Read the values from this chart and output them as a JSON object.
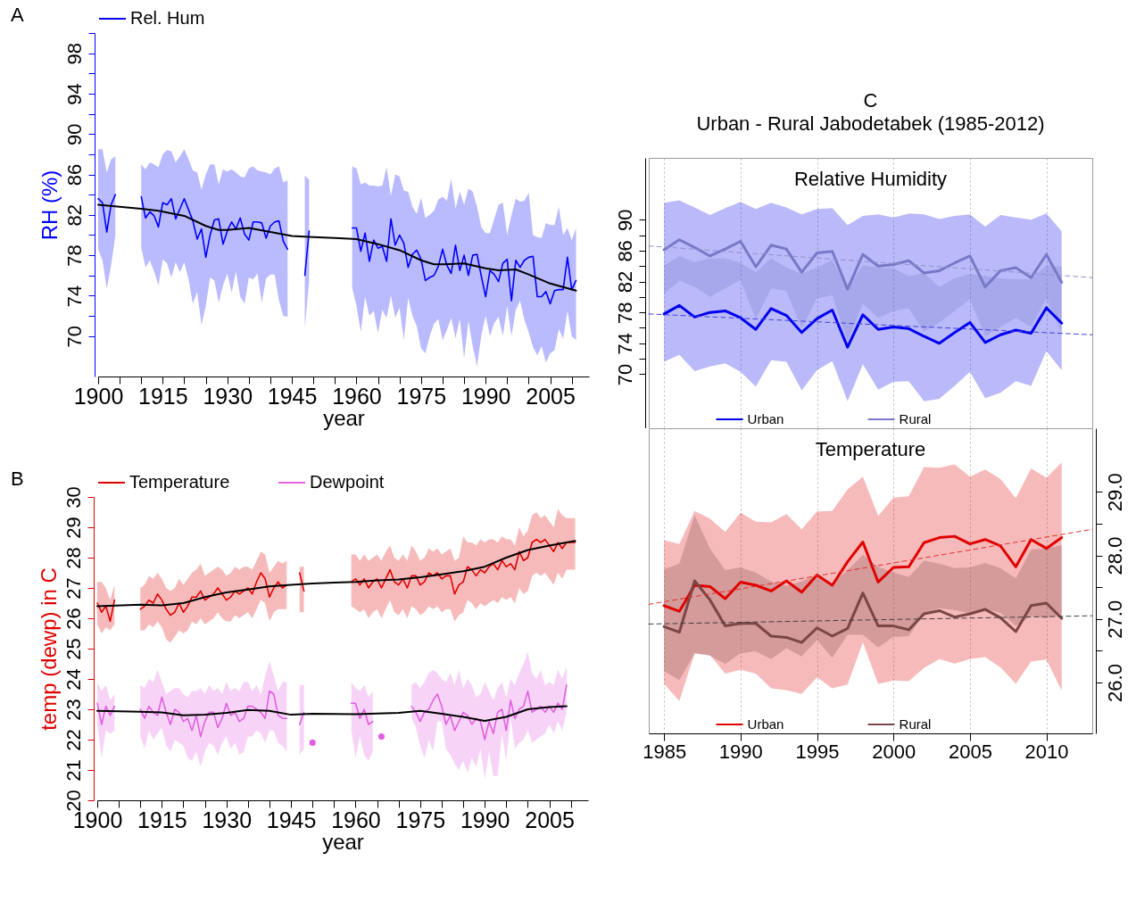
{
  "chart_data": [
    {
      "type": "line",
      "xlabel": "year",
      "ylabel": "RH (%)",
      "annotations": [
        "A"
      ],
      "legend": "top",
      "xlim": [
        1900,
        2014
      ],
      "xticks": [
        1900,
        {
          "value": 1905,
          "label": null
        },
        {
          "value": 1910,
          "label": null
        },
        1915,
        {
          "value": 1920,
          "label": null
        },
        {
          "value": 1925,
          "label": null
        },
        1930,
        {
          "value": 1935,
          "label": null
        },
        {
          "value": 1940,
          "label": null
        },
        1945,
        {
          "value": 1950,
          "label": null
        },
        {
          "value": 1955,
          "label": null
        },
        1960,
        {
          "value": 1965,
          "label": null
        },
        {
          "value": 1970,
          "label": null
        },
        1975,
        {
          "value": 1980,
          "label": null
        },
        {
          "value": 1985,
          "label": null
        },
        1990,
        {
          "value": 1995,
          "label": null
        },
        {
          "value": 2000,
          "label": null
        },
        2005,
        {
          "value": 2010,
          "label": null
        }
      ],
      "ylim": [
        66,
        100
      ],
      "yticks": [
        70,
        {
          "value": 72,
          "label": null
        },
        74,
        {
          "value": 76,
          "label": null
        },
        78,
        {
          "value": 80,
          "label": null
        },
        82,
        {
          "value": 84,
          "label": null
        },
        86,
        {
          "value": 88,
          "label": null
        },
        90,
        {
          "value": 92,
          "label": null
        },
        94,
        {
          "value": 96,
          "label": null
        },
        98,
        {
          "value": 100,
          "label": null
        }
      ],
      "series": [
        {
          "name": "Rel. Hum",
          "color": "#0000ff",
          "x": [
            1900,
            1901,
            1902,
            1903,
            1904,
            1905,
            1910,
            1911,
            1912,
            1913,
            1914,
            1915,
            1916,
            1917,
            1918,
            1919,
            1920,
            1921,
            1922,
            1923,
            1924,
            1925,
            1926,
            1927,
            1928,
            1929,
            1930,
            1931,
            1932,
            1933,
            1934,
            1935,
            1936,
            1937,
            1938,
            1939,
            1940,
            1941,
            1942,
            1943,
            1944,
            1945,
            1948,
            1949,
            1950,
            1959,
            1960,
            1961,
            1962,
            1963,
            1964,
            1965,
            1966,
            1967,
            1968,
            1969,
            1970,
            1971,
            1972,
            1973,
            1974,
            1975,
            1976,
            1977,
            1978,
            1979,
            1980,
            1981,
            1982,
            1983,
            1984,
            1985,
            1986,
            1987,
            1988,
            1989,
            1990,
            1991,
            1992,
            1993,
            1994,
            1995,
            1996,
            1997,
            1998,
            1999,
            2000,
            2001,
            2002,
            2003,
            2004,
            2005,
            2006,
            2007,
            2008,
            2009,
            2010,
            2011
          ],
          "values": [
            83.6,
            83.2,
            80.3,
            83,
            84,
            null,
            83.8,
            81.7,
            82.3,
            81.9,
            80.8,
            83.2,
            83,
            83.6,
            81.6,
            82.6,
            83.6,
            82.5,
            81.4,
            79.6,
            80.6,
            77.8,
            80,
            81.5,
            81.6,
            79.1,
            80.4,
            81.3,
            80.6,
            81.7,
            80.1,
            79.5,
            81.3,
            81.3,
            81.2,
            79.7,
            80.9,
            81.3,
            81.4,
            79.4,
            78.6,
            null,
            76.0,
            80.4,
            null,
            80.7,
            80.7,
            78.4,
            80.2,
            77.4,
            79.5,
            78.7,
            78.9,
            77.4,
            81.6,
            79,
            80,
            79.2,
            76.8,
            78.1,
            78.5,
            77.6,
            75.5,
            75.8,
            76,
            76.9,
            78.6,
            77,
            76.2,
            79,
            76.5,
            78,
            76,
            78,
            78.1,
            75.9,
            73.9,
            76.5,
            76.1,
            75.4,
            77.2,
            77.6,
            73.5,
            77.5,
            76.8,
            77.5,
            77.8,
            77.9,
            73.9,
            73.9,
            74.4,
            73.2,
            74.5,
            74.6,
            74.6,
            77.8,
            74.6,
            75.5
          ],
          "upper": [
            88.5,
            88.5,
            86.2,
            87.5,
            87.8,
            null,
            87,
            86.5,
            87.2,
            87,
            86.7,
            88,
            88.4,
            88.3,
            87.2,
            87.8,
            88.5,
            87.5,
            86.4,
            86.2,
            84.5,
            86,
            87,
            87,
            85,
            86.5,
            86.3,
            86.5,
            86.2,
            85.8,
            85.7,
            86.6,
            86.8,
            86.4,
            86.3,
            86.2,
            86,
            86.6,
            86.8,
            85.2,
            85.4,
            null,
            85.9,
            85.5,
            null,
            86.8,
            86.6,
            85,
            85.2,
            84.9,
            84.9,
            84.8,
            84.9,
            86.7,
            83.9,
            86,
            85.8,
            84.4,
            84.3,
            82.8,
            82.1,
            83.7,
            81.7,
            82,
            82.4,
            83.5,
            83.8,
            83.4,
            85.6,
            82.6,
            84.3,
            83,
            84.6,
            84.3,
            82.8,
            80.8,
            80.2,
            80.2,
            81.6,
            83,
            83.2,
            80,
            82,
            83.6,
            83.3,
            83.4,
            84.2,
            80,
            79.8,
            79.7,
            81.2,
            81,
            81,
            82.8,
            80,
            80.7,
            79.5,
            80.7
          ],
          "lower": [
            78.6,
            77.5,
            74.7,
            77,
            80,
            null,
            78.8,
            76.8,
            77.5,
            76.4,
            75,
            77.6,
            77.2,
            75.8,
            77.3,
            76.3,
            77.3,
            75.6,
            73.2,
            74.4,
            71.1,
            73,
            75.8,
            75.5,
            73.3,
            75,
            76.2,
            74.3,
            76.4,
            73.9,
            73.2,
            75.8,
            75.6,
            76.2,
            73.3,
            75.7,
            76.1,
            76.1,
            73.5,
            72,
            71.9,
            null,
            70.8,
            75.5,
            null,
            74.8,
            73,
            70.4,
            73.9,
            72,
            72.5,
            70.3,
            72.6,
            71.8,
            74,
            71.8,
            72.8,
            69.6,
            73.8,
            72,
            71,
            68.8,
            68.3,
            70,
            71.2,
            71.7,
            69.6,
            70.6,
            71.8,
            69.8,
            71.7,
            67.8,
            71.5,
            69,
            67,
            70.1,
            72,
            70,
            71.3,
            71.9,
            70,
            73,
            70,
            72.6,
            73.5,
            71.6,
            70.4,
            68.9,
            68.1,
            69,
            67.4,
            68.3,
            68.6,
            70.7,
            69.7,
            72.5,
            70,
            69.6
          ]
        },
        {
          "color": "#000000",
          "x": [
            1900,
            1910,
            1914,
            1920,
            1925,
            1928,
            1930,
            1935,
            1940,
            1945,
            1950,
            1955,
            1960,
            1965,
            1970,
            1975,
            1978,
            1980,
            1985,
            1990,
            1993,
            1997,
            2000,
            2005,
            2011
          ],
          "values": [
            83,
            82.6,
            82.4,
            81.9,
            80.9,
            80.5,
            80.5,
            80.7,
            80.3,
            79.9,
            79.8,
            79.7,
            79.6,
            79.1,
            78.5,
            77.5,
            77.1,
            77.1,
            77.2,
            76.7,
            76.5,
            76.6,
            76.1,
            75.2,
            74.5
          ]
        }
      ]
    },
    {
      "type": "line",
      "xlabel": "year",
      "ylabel": "temp (dewp) in C",
      "annotations": [
        "B"
      ],
      "legend": "top",
      "xlim": [
        1900,
        2014
      ],
      "xticks": [
        1900,
        {
          "value": 1905,
          "label": null
        },
        {
          "value": 1910,
          "label": null
        },
        1915,
        {
          "value": 1920,
          "label": null
        },
        {
          "value": 1925,
          "label": null
        },
        1930,
        {
          "value": 1935,
          "label": null
        },
        {
          "value": 1940,
          "label": null
        },
        1945,
        {
          "value": 1950,
          "label": null
        },
        {
          "value": 1955,
          "label": null
        },
        1960,
        {
          "value": 1965,
          "label": null
        },
        {
          "value": 1970,
          "label": null
        },
        1975,
        {
          "value": 1980,
          "label": null
        },
        {
          "value": 1985,
          "label": null
        },
        1990,
        {
          "value": 1995,
          "label": null
        },
        {
          "value": 2000,
          "label": null
        },
        2005,
        {
          "value": 2010,
          "label": null
        }
      ],
      "ylim": [
        20,
        30
      ],
      "yticks": [
        20,
        21,
        22,
        23,
        24,
        25,
        26,
        27,
        28,
        29,
        30
      ],
      "series": [
        {
          "name": "Temperature",
          "color": "#e00000",
          "x": [
            1900,
            1901,
            1902,
            1903,
            1904,
            1905,
            1910,
            1911,
            1912,
            1913,
            1914,
            1915,
            1916,
            1917,
            1918,
            1919,
            1920,
            1921,
            1922,
            1923,
            1924,
            1925,
            1926,
            1927,
            1928,
            1929,
            1930,
            1931,
            1932,
            1933,
            1934,
            1935,
            1936,
            1937,
            1938,
            1939,
            1940,
            1941,
            1942,
            1943,
            1944,
            1945,
            1947,
            1948,
            1949,
            1959,
            1960,
            1961,
            1962,
            1963,
            1964,
            1965,
            1966,
            1967,
            1968,
            1969,
            1970,
            1971,
            1972,
            1973,
            1974,
            1975,
            1976,
            1977,
            1978,
            1979,
            1980,
            1981,
            1982,
            1983,
            1984,
            1985,
            1986,
            1987,
            1988,
            1989,
            1990,
            1991,
            1992,
            1993,
            1994,
            1995,
            1996,
            1997,
            1998,
            1999,
            2000,
            2001,
            2002,
            2003,
            2004,
            2005,
            2006,
            2007,
            2008,
            2009,
            2010,
            2011
          ],
          "values": [
            26.5,
            26.2,
            26.4,
            25.9,
            26.6,
            null,
            26.3,
            26.4,
            26.6,
            26.5,
            26.8,
            26.6,
            26.3,
            26.1,
            26.2,
            26.5,
            26.2,
            26.4,
            26.7,
            26.7,
            26.9,
            26.6,
            26.7,
            26.8,
            27.0,
            26.8,
            26.6,
            26.7,
            26.9,
            26.8,
            26.9,
            27.0,
            26.8,
            27.2,
            27.5,
            27.3,
            26.7,
            27.0,
            27.2,
            27.0,
            27.1,
            null,
            27.5,
            26.9,
            null,
            27.2,
            27.3,
            27.1,
            27.3,
            27.0,
            27.2,
            27.3,
            27.0,
            27.3,
            27.6,
            27.2,
            27.1,
            27.3,
            27.0,
            27.4,
            27.4,
            27.1,
            27.2,
            27.5,
            27.4,
            27.5,
            27.3,
            27.4,
            27.4,
            26.8,
            27.1,
            27.2,
            27.7,
            27.6,
            27.4,
            27.6,
            27.5,
            27.7,
            27.8,
            27.6,
            27.9,
            27.7,
            27.8,
            27.6,
            28.2,
            27.9,
            28.0,
            28.5,
            28.6,
            28.5,
            28.6,
            28.4,
            28.2,
            28.5,
            28.3,
            28.5,
            28.5,
            28.5
          ],
          "upper": [
            27.2,
            27.2,
            27.0,
            26.6,
            27.1,
            null,
            27.0,
            27.1,
            27.4,
            27.3,
            27.5,
            27.3,
            27.0,
            26.9,
            27.0,
            27.3,
            27.1,
            27.3,
            27.5,
            27.6,
            27.8,
            27.4,
            27.5,
            27.6,
            27.7,
            27.6,
            27.4,
            27.5,
            27.7,
            27.6,
            27.7,
            27.7,
            27.6,
            27.9,
            28.2,
            28.1,
            27.5,
            27.7,
            27.9,
            27.8,
            27.9,
            null,
            27.7,
            27.7,
            null,
            28.1,
            28.1,
            27.9,
            28.1,
            27.9,
            28.0,
            28.1,
            27.9,
            28.2,
            28.4,
            28.0,
            27.9,
            28.1,
            27.9,
            28.4,
            28.2,
            27.9,
            28.0,
            28.3,
            28.2,
            28.3,
            28.1,
            28.2,
            28.3,
            27.9,
            28.0,
            28.7,
            28.5,
            28.5,
            28.4,
            28.6,
            28.5,
            28.6,
            28.6,
            28.5,
            28.7,
            28.6,
            28.6,
            28.4,
            29.0,
            28.7,
            28.9,
            29.4,
            29.5,
            29.3,
            29.4,
            29.2,
            29.0,
            29.6,
            29.4,
            29.3,
            29.3,
            29.3
          ],
          "lower": [
            25.8,
            25.5,
            25.7,
            25.6,
            25.8,
            null,
            25.6,
            25.6,
            25.8,
            25.7,
            25.9,
            25.7,
            25.3,
            25.2,
            25.4,
            25.6,
            25.5,
            25.6,
            25.9,
            25.8,
            26.0,
            25.8,
            25.9,
            26.0,
            26.2,
            26.0,
            25.9,
            25.9,
            26.1,
            26.0,
            26.1,
            26.2,
            26.0,
            26.3,
            26.6,
            26.5,
            25.9,
            26.2,
            26.3,
            26.3,
            26.3,
            null,
            26.2,
            26.2,
            null,
            26.4,
            26.3,
            26.2,
            26.3,
            26.0,
            26.2,
            26.3,
            26.0,
            26.3,
            26.6,
            26.2,
            26.1,
            26.3,
            26.0,
            26.4,
            26.3,
            26.1,
            26.2,
            26.4,
            26.3,
            26.4,
            26.2,
            26.3,
            26.3,
            25.9,
            26.1,
            26.2,
            26.6,
            26.5,
            26.3,
            26.5,
            26.4,
            26.5,
            26.6,
            26.5,
            26.7,
            26.6,
            26.7,
            26.5,
            27.0,
            26.8,
            26.9,
            27.4,
            27.5,
            27.4,
            27.5,
            27.3,
            27.1,
            27.5,
            27.3,
            27.6,
            27.6,
            27.6
          ]
        },
        {
          "name": "Dewpoint",
          "color": "#e060e0",
          "x": [
            1900,
            1901,
            1902,
            1903,
            1904,
            1905,
            1910,
            1911,
            1912,
            1913,
            1914,
            1915,
            1916,
            1917,
            1918,
            1919,
            1920,
            1921,
            1922,
            1923,
            1924,
            1925,
            1926,
            1927,
            1928,
            1929,
            1930,
            1931,
            1932,
            1933,
            1934,
            1935,
            1936,
            1937,
            1938,
            1939,
            1940,
            1941,
            1942,
            1943,
            1944,
            1945,
            1947,
            1948,
            1949,
            1950,
            1951,
            1959,
            1960,
            1961,
            1962,
            1963,
            1964,
            1965,
            1966,
            1967,
            1973,
            1974,
            1975,
            1976,
            1977,
            1978,
            1979,
            1980,
            1981,
            1982,
            1983,
            1984,
            1985,
            1986,
            1987,
            1988,
            1989,
            1990,
            1991,
            1992,
            1993,
            1994,
            1995,
            1996,
            1997,
            1998,
            1999,
            2000,
            2001,
            2002,
            2003,
            2004,
            2005,
            2006,
            2007,
            2008,
            2009
          ],
          "values": [
            23.2,
            22.5,
            23.1,
            22.8,
            23.1,
            null,
            23.0,
            22.7,
            23.1,
            22.9,
            22.8,
            23.4,
            22.9,
            22.5,
            23.0,
            22.9,
            22.6,
            22.7,
            22.3,
            22.8,
            22.1,
            22.6,
            22.9,
            22.9,
            22.4,
            22.7,
            23.2,
            22.8,
            22.9,
            22.6,
            22.7,
            23.1,
            23.1,
            23.0,
            22.9,
            22.7,
            23.6,
            23.5,
            22.8,
            22.7,
            22.7,
            null,
            22.5,
            22.9,
            null,
            21.9,
            null,
            23.2,
            23.2,
            22.7,
            23.0,
            22.5,
            22.6,
            null,
            22.1,
            null,
            23.1,
            22.9,
            22.6,
            22.9,
            23.0,
            23.3,
            23.5,
            23.1,
            22.5,
            22.8,
            22.3,
            22.6,
            22.9,
            22.8,
            22.5,
            22.7,
            22.6,
            22.0,
            22.6,
            22.2,
            22.9,
            23.0,
            22.3,
            23.3,
            22.7,
            23.0,
            23.1,
            23.6,
            22.9,
            23.0,
            23.1,
            22.9,
            23.1,
            22.9,
            23.2,
            23.0,
            23.8
          ],
          "upper": [
            23.9,
            23.6,
            23.8,
            23.3,
            23.5,
            null,
            23.8,
            23.7,
            24.0,
            23.9,
            24.3,
            23.9,
            23.5,
            23.6,
            23.7,
            23.7,
            23.5,
            23.4,
            23.6,
            23.6,
            23.7,
            23.5,
            23.8,
            23.6,
            23.7,
            23.5,
            23.9,
            23.6,
            23.7,
            23.6,
            23.9,
            23.9,
            23.6,
            23.8,
            23.5,
            24.1,
            24.6,
            24.1,
            23.6,
            23.9,
            23.9,
            null,
            23.8,
            23.8,
            null,
            null,
            null,
            23.9,
            23.7,
            23.6,
            23.8,
            23.4,
            23.6,
            null,
            null,
            null,
            23.8,
            23.9,
            23.7,
            23.9,
            24.2,
            24.3,
            24.2,
            24.0,
            23.9,
            24.2,
            23.8,
            24.3,
            23.7,
            24.0,
            23.8,
            23.4,
            23.5,
            23.9,
            23.6,
            23.3,
            23.7,
            23.9,
            23.4,
            24.0,
            23.8,
            24.2,
            24.5,
            24.9,
            24.2,
            24.0,
            24.3,
            23.8,
            23.9,
            23.8,
            24.3,
            24.0,
            24.4
          ],
          "lower": [
            22.5,
            21.4,
            22.3,
            22.2,
            22.3,
            null,
            22.1,
            21.7,
            22.3,
            22.0,
            22.2,
            22.4,
            21.8,
            21.6,
            22.0,
            21.9,
            21.8,
            21.4,
            21.3,
            21.6,
            21.1,
            21.6,
            21.9,
            21.8,
            21.5,
            21.9,
            22.1,
            21.7,
            21.9,
            21.5,
            21.6,
            22.1,
            22.1,
            22.3,
            22.2,
            21.9,
            22.3,
            22.3,
            21.9,
            21.8,
            21.6,
            null,
            21.5,
            21.7,
            null,
            null,
            null,
            22.3,
            21.4,
            22.1,
            21.5,
            21.3,
            21.6,
            null,
            null,
            null,
            22.7,
            22.4,
            21.8,
            21.4,
            22.0,
            21.6,
            22.6,
            22.6,
            21.7,
            21.5,
            21.2,
            21.0,
            21.3,
            20.9,
            21.4,
            21.1,
            21.7,
            20.7,
            21.6,
            20.8,
            20.8,
            22.2,
            21.3,
            22.7,
            21.7,
            21.9,
            22.0,
            22.3,
            21.9,
            22.0,
            22.1,
            22.2,
            22.5,
            22.2,
            22.6,
            22.3,
            22.9
          ]
        },
        {
          "color": "#000000",
          "x": [
            1900,
            1910,
            1915,
            1920,
            1925,
            1930,
            1935,
            1940,
            1945,
            1950,
            1955,
            1960,
            1965,
            1970,
            1975,
            1980,
            1985,
            1990,
            1995,
            2000,
            2005,
            2011
          ],
          "values": [
            26.4,
            26.45,
            26.43,
            26.5,
            26.7,
            26.85,
            26.95,
            27.05,
            27.1,
            27.15,
            27.18,
            27.2,
            27.25,
            27.28,
            27.35,
            27.45,
            27.55,
            27.7,
            28.0,
            28.25,
            28.4,
            28.55
          ]
        },
        {
          "color": "#000000",
          "x": [
            1900,
            1910,
            1915,
            1920,
            1925,
            1930,
            1935,
            1940,
            1945,
            1950,
            1960,
            1970,
            1975,
            1980,
            1985,
            1990,
            1995,
            2000,
            2005,
            2009
          ],
          "values": [
            22.95,
            22.92,
            22.9,
            22.8,
            22.82,
            22.88,
            22.98,
            22.95,
            22.82,
            22.85,
            22.84,
            22.88,
            22.95,
            22.85,
            22.75,
            22.62,
            22.75,
            23.0,
            23.07,
            23.1
          ]
        }
      ]
    },
    {
      "type": "line",
      "title": "Relative Humidity",
      "annotations": [
        "C",
        "Urban - Rural Jabodetabek (1985-2012)"
      ],
      "legend": "bottom",
      "grid": "x",
      "tick_labels": "y",
      "x": [
        1985,
        1986,
        1987,
        1988,
        1989,
        1990,
        1991,
        1992,
        1993,
        1994,
        1995,
        1996,
        1997,
        1998,
        1999,
        2000,
        2001,
        2002,
        2003,
        2004,
        2005,
        2006,
        2007,
        2008,
        2009,
        2010,
        2011
      ],
      "xlim": [
        1984,
        2013
      ],
      "xticks": [
        1985,
        1990,
        1995,
        2000,
        2005,
        2010
      ],
      "ylim": [
        63,
        98
      ],
      "yticks": [
        70,
        {
          "value": 72,
          "label": null
        },
        74,
        {
          "value": 76,
          "label": null
        },
        78,
        {
          "value": 80,
          "label": null
        },
        82,
        {
          "value": 84,
          "label": null
        },
        86,
        {
          "value": 88,
          "label": null
        },
        90
      ],
      "series": [
        {
          "name": "Urban",
          "color": "#0000ee",
          "values": [
            77.8,
            78.9,
            77.4,
            78.0,
            78.2,
            77.3,
            75.8,
            78.5,
            77.6,
            75.4,
            77.2,
            78.3,
            73.5,
            77.7,
            75.8,
            76.1,
            75.9,
            74.9,
            74.0,
            75.4,
            76.7,
            74.1,
            75.1,
            75.7,
            75.3,
            78.6,
            76.6
          ],
          "upper": [
            92.2,
            92.5,
            91.6,
            90.6,
            91.5,
            92.3,
            91.4,
            92.2,
            91.6,
            90.7,
            91.4,
            91.5,
            89.3,
            90.5,
            90.7,
            90.3,
            90.8,
            90.7,
            90.1,
            90.5,
            90.7,
            89.1,
            90.6,
            90.3,
            90.0,
            90.8,
            88.5
          ],
          "lower": [
            71.6,
            72.5,
            70.4,
            71.0,
            71.4,
            70.3,
            68.4,
            71.8,
            71.6,
            67.9,
            70.5,
            71.7,
            66.5,
            71.3,
            68.0,
            69.0,
            69.1,
            66.5,
            66.8,
            68.5,
            70.3,
            66.9,
            67.6,
            69.1,
            68.5,
            73.0,
            70.5
          ]
        },
        {
          "name": "Rural",
          "color": "#7878c8",
          "values": [
            86.1,
            87.4,
            86.4,
            85.3,
            86.2,
            87.2,
            83.9,
            86.7,
            86.2,
            83.2,
            85.7,
            85.9,
            81.0,
            85.5,
            84.0,
            84.2,
            84.7,
            83.1,
            83.4,
            84.4,
            85.3,
            81.3,
            83.4,
            83.8,
            82.5,
            85.5,
            81.9
          ],
          "upper": [
            84.1,
            85.3,
            84.5,
            85.0,
            85.0,
            84.4,
            83.2,
            85.0,
            83.8,
            83.0,
            83.8,
            84.8,
            81.1,
            84.1,
            83.8,
            83.7,
            82.7,
            83.1,
            81.3,
            82.4,
            83.0,
            82.7,
            82.4,
            82.3,
            82.3,
            84.1,
            83.9
          ],
          "lower": [
            80.4,
            82.1,
            81.3,
            80.0,
            81.1,
            82.2,
            77.1,
            81.1,
            80.8,
            75.9,
            79.8,
            80.2,
            74.2,
            79.1,
            77.3,
            78.2,
            78.5,
            75.5,
            76.7,
            78.2,
            79.7,
            74.9,
            76.1,
            77.3,
            76.1,
            79.8,
            75.3
          ]
        },
        {
          "type": "line",
          "color": "#4040e0",
          "line_style": "dashed",
          "x": [
            1984,
            2013
          ],
          "values": [
            77.8,
            75.1
          ]
        },
        {
          "type": "line",
          "color": "#9090c8",
          "line_style": "dashed",
          "x": [
            1984,
            2013
          ],
          "values": [
            86.6,
            82.5
          ]
        }
      ]
    },
    {
      "type": "line",
      "title": "Temperature",
      "legend": "bottom",
      "grid": "x",
      "x": [
        1985,
        1986,
        1987,
        1988,
        1989,
        1990,
        1991,
        1992,
        1993,
        1994,
        1995,
        1996,
        1997,
        1998,
        1999,
        2000,
        2001,
        2002,
        2003,
        2004,
        2005,
        2006,
        2007,
        2008,
        2009,
        2010,
        2011
      ],
      "xlim": [
        1984,
        2013
      ],
      "xticks": [
        1985,
        1990,
        1995,
        2000,
        2005,
        2010
      ],
      "y2lim": [
        25.2,
        30
      ],
      "y2ticks": [
        {
          "value": 26,
          "label": "26.0"
        },
        {
          "value": 26.5,
          "label": null
        },
        {
          "value": 27,
          "label": "27.0"
        },
        {
          "value": 27.5,
          "label": null
        },
        {
          "value": 28,
          "label": "28.0"
        },
        {
          "value": 28.5,
          "label": null
        },
        {
          "value": 29,
          "label": "29.0"
        }
      ],
      "series": [
        {
          "name": "Urban",
          "color": "#e00000",
          "axis": "y2",
          "values": [
            27.21,
            27.12,
            27.53,
            27.51,
            27.32,
            27.58,
            27.53,
            27.44,
            27.6,
            27.42,
            27.69,
            27.53,
            27.9,
            28.21,
            27.58,
            27.81,
            27.82,
            28.2,
            28.28,
            28.3,
            28.18,
            28.25,
            28.15,
            27.82,
            28.25,
            28.11,
            28.28
          ],
          "upper": [
            28.24,
            28.18,
            28.7,
            28.58,
            28.37,
            28.67,
            28.53,
            28.52,
            28.65,
            28.41,
            28.69,
            28.7,
            29.04,
            29.24,
            28.62,
            28.91,
            28.93,
            29.39,
            29.38,
            29.43,
            29.24,
            29.35,
            29.2,
            28.9,
            29.37,
            29.22,
            29.46
          ],
          "lower": [
            25.98,
            25.71,
            26.46,
            26.43,
            26.14,
            26.2,
            26.14,
            25.91,
            25.88,
            25.82,
            26.08,
            25.91,
            25.97,
            26.63,
            25.98,
            26.03,
            26.02,
            26.23,
            26.37,
            26.3,
            26.37,
            26.4,
            26.24,
            25.98,
            26.33,
            26.36,
            25.87
          ]
        },
        {
          "name": "Rural",
          "color": "#7a4646",
          "axis": "y2",
          "values": [
            26.88,
            26.79,
            27.6,
            27.3,
            26.89,
            26.93,
            26.93,
            26.73,
            26.71,
            26.63,
            26.86,
            26.73,
            26.85,
            27.41,
            26.89,
            26.89,
            26.83,
            27.08,
            27.13,
            27.03,
            27.08,
            27.15,
            27.02,
            26.8,
            27.21,
            27.25,
            27.01
          ],
          "upper": [
            27.78,
            27.87,
            28.63,
            28.11,
            27.77,
            27.81,
            27.73,
            27.59,
            27.52,
            27.59,
            27.7,
            27.56,
            27.77,
            28.01,
            27.82,
            27.73,
            27.66,
            27.92,
            27.87,
            27.8,
            27.81,
            27.88,
            27.8,
            27.64,
            28.09,
            28.11,
            28.16
          ],
          "lower": [
            26.18,
            26.04,
            26.46,
            26.42,
            26.29,
            26.46,
            26.49,
            26.37,
            26.54,
            26.41,
            26.67,
            26.39,
            26.75,
            26.75,
            26.55,
            26.72,
            26.73,
            27.09,
            27.17,
            27.14,
            27.09,
            27.15,
            27.1,
            26.89,
            27.05,
            27.01,
            27.07
          ]
        },
        {
          "type": "line",
          "color": "#e03030",
          "axis": "y2",
          "line_style": "dashed",
          "x": [
            1984,
            2013
          ],
          "values": [
            27.23,
            28.41
          ]
        },
        {
          "type": "line",
          "color": "#404040",
          "axis": "y2",
          "line_style": "dashed",
          "x": [
            1984,
            2013
          ],
          "values": [
            26.92,
            27.05
          ]
        }
      ]
    }
  ]
}
